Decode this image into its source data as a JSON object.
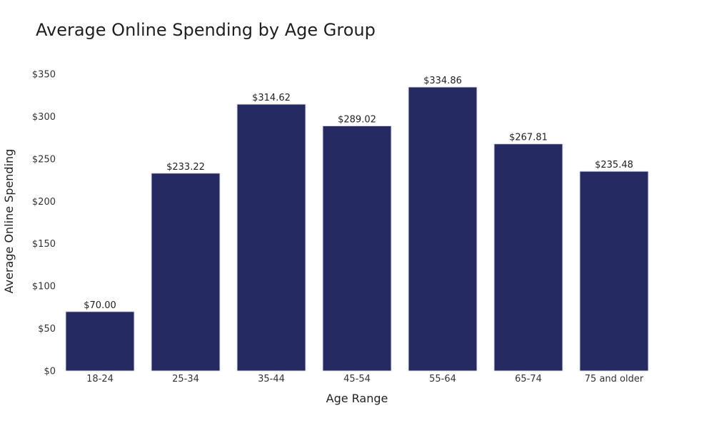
{
  "chart_data": {
    "type": "bar",
    "title": "Average Online Spending by Age Group",
    "xlabel": "Age Range",
    "ylabel": "Average Online Spending",
    "categories": [
      "18-24",
      "25-34",
      "35-44",
      "45-54",
      "55-64",
      "65-74",
      "75 and older"
    ],
    "values": [
      70.0,
      233.22,
      314.62,
      289.02,
      334.86,
      267.81,
      235.48
    ],
    "data_labels": [
      "$70.00",
      "$233.22",
      "$314.62",
      "$289.02",
      "$334.86",
      "$267.81",
      "$235.48"
    ],
    "yticks": [
      0,
      50,
      100,
      150,
      200,
      250,
      300,
      350
    ],
    "ytick_labels": [
      "$0",
      "$50",
      "$100",
      "$150",
      "$200",
      "$250",
      "$300",
      "$350"
    ],
    "ylim": [
      0,
      350
    ],
    "grid": false,
    "bar_color": "#252a63"
  }
}
